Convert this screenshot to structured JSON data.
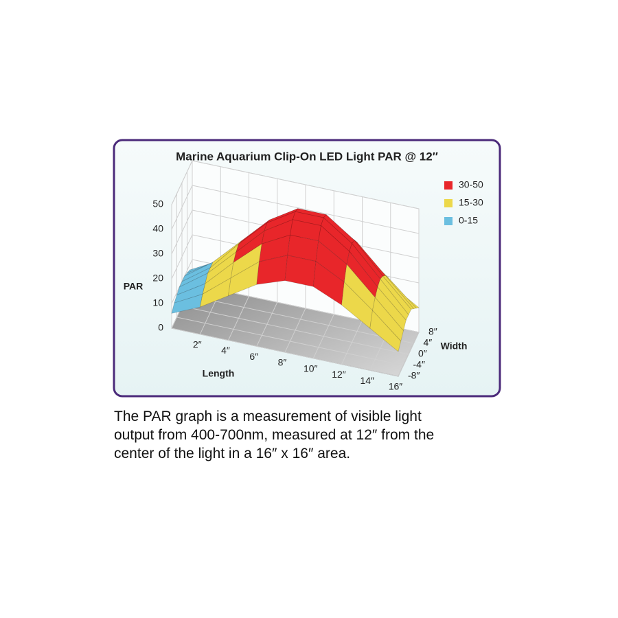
{
  "chart_data": {
    "type": "surface",
    "title": "Marine Aquarium Clip-On LED Light PAR @ 12″",
    "x_label": "Length",
    "y_label": "Width",
    "z_label": "PAR",
    "x": [
      0,
      2,
      4,
      6,
      8,
      10,
      12,
      14,
      16
    ],
    "y": [
      -8,
      -6,
      -4,
      -2,
      0,
      2,
      4,
      6,
      8
    ],
    "z": [
      [
        6,
        11,
        18,
        25,
        29,
        29,
        24,
        17,
        10
      ],
      [
        8,
        14,
        23,
        32,
        37,
        37,
        31,
        22,
        12
      ],
      [
        9,
        16,
        27,
        37,
        43,
        43,
        36,
        25,
        14
      ],
      [
        10,
        18,
        29,
        40,
        47,
        47,
        39,
        27,
        16
      ],
      [
        10,
        18,
        30,
        41,
        48,
        48,
        40,
        28,
        16
      ],
      [
        10,
        18,
        29,
        40,
        47,
        47,
        39,
        27,
        16
      ],
      [
        9,
        16,
        27,
        37,
        43,
        43,
        36,
        25,
        14
      ],
      [
        8,
        14,
        23,
        32,
        37,
        37,
        31,
        22,
        12
      ],
      [
        6,
        11,
        18,
        25,
        29,
        29,
        24,
        17,
        10
      ]
    ],
    "xlim": [
      0,
      16
    ],
    "ylim": [
      -8,
      8
    ],
    "zlim": [
      0,
      50
    ],
    "xticks": [
      {
        "value": 2,
        "label": "2″"
      },
      {
        "value": 4,
        "label": "4″"
      },
      {
        "value": 6,
        "label": "6″"
      },
      {
        "value": 8,
        "label": "8″"
      },
      {
        "value": 10,
        "label": "10″"
      },
      {
        "value": 12,
        "label": "12″"
      },
      {
        "value": 14,
        "label": "14″"
      },
      {
        "value": 16,
        "label": "16″"
      }
    ],
    "yticks": [
      {
        "value": -8,
        "label": "-8″"
      },
      {
        "value": -4,
        "label": "-4″"
      },
      {
        "value": 0,
        "label": "0″"
      },
      {
        "value": 4,
        "label": "4″"
      },
      {
        "value": 8,
        "label": "8″"
      }
    ],
    "zticks": [
      0,
      10,
      20,
      30,
      40,
      50
    ],
    "legend": [
      {
        "label": "30-50",
        "color": "#e8262a",
        "min": 30,
        "max": 50
      },
      {
        "label": "15-30",
        "color": "#ecd84a",
        "min": 15,
        "max": 30
      },
      {
        "label": "0-15",
        "color": "#6bbfe0",
        "min": 0,
        "max": 15
      }
    ],
    "grid": true
  },
  "caption": [
    "The PAR graph is a measurement of visible light",
    "output from 400-700nm, measured at 12″ from the",
    "center of the light in a 16″ x 16″ area."
  ]
}
